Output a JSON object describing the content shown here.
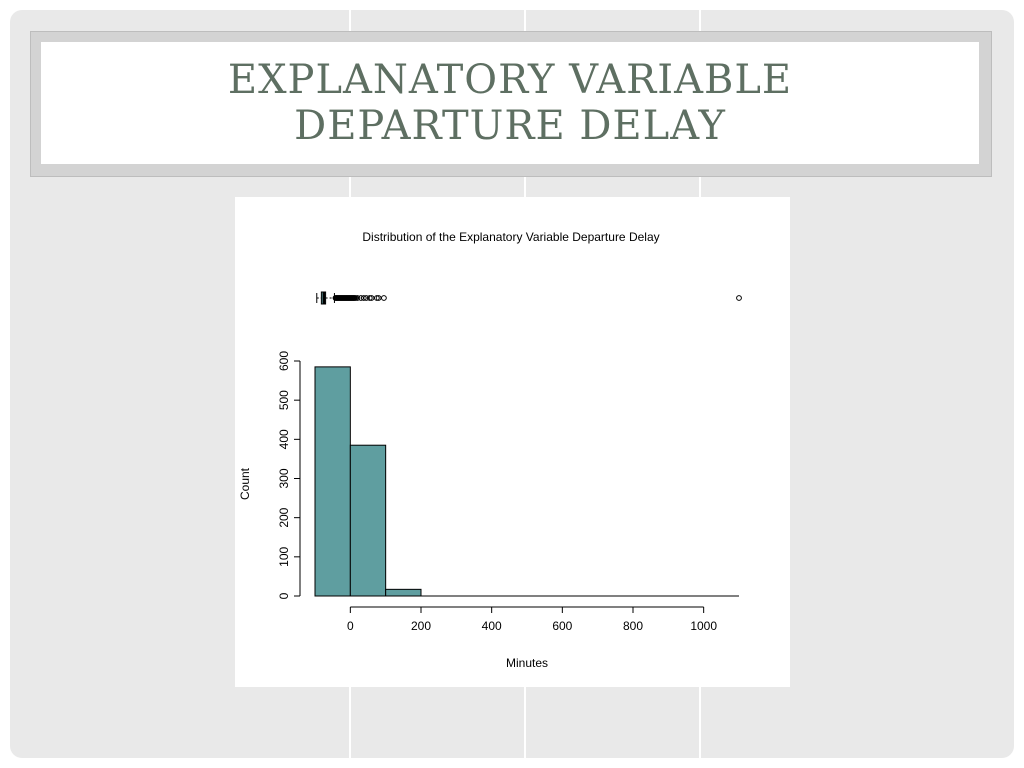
{
  "slide": {
    "title_line1": "EXPLANATORY VARIABLE",
    "title_line2": "DEPARTURE DELAY"
  },
  "colors": {
    "slide_background": "#e9e9e9",
    "title_text": "#5e6f62",
    "bar_fill": "#5f9ea0",
    "stroke": "#000000"
  },
  "chart_data": {
    "type": "bar",
    "title": "Distribution of the Explanatory Variable Departure Delay",
    "xlabel": "Minutes",
    "ylabel": "Count",
    "xlim": [
      -100,
      1100
    ],
    "ylim": [
      0,
      600
    ],
    "xticks": [
      0,
      200,
      400,
      600,
      800,
      1000
    ],
    "yticks": [
      0,
      100,
      200,
      300,
      400,
      500,
      600
    ],
    "grid": false,
    "histogram": {
      "bin_edges": [
        -100,
        0,
        100,
        200
      ],
      "counts": [
        585,
        385,
        17
      ]
    },
    "boxplot": {
      "whisker_low": -95,
      "q1": -82,
      "median": -75,
      "q3": -70,
      "whisker_high": -45,
      "outliers": [
        -42,
        -40,
        -38,
        -36,
        -34,
        -32,
        -30,
        -28,
        -26,
        -24,
        -22,
        -20,
        -18,
        -16,
        -14,
        -12,
        -10,
        -8,
        -6,
        -4,
        -2,
        0,
        2,
        4,
        6,
        8,
        10,
        12,
        15,
        20,
        30,
        38,
        45,
        55,
        60,
        75,
        80,
        95,
        1100
      ]
    }
  }
}
